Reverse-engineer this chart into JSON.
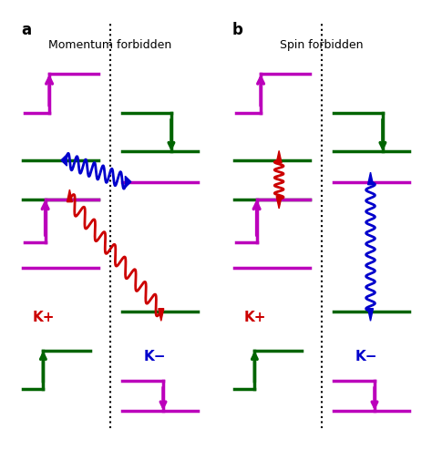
{
  "fig_width": 4.74,
  "fig_height": 4.94,
  "dpi": 100,
  "panel_a_title": "Momentum forbidden",
  "panel_b_title": "Spin forbidden",
  "label_a": "a",
  "label_b": "b",
  "purple": "#BB00BB",
  "green": "#006400",
  "red": "#CC0000",
  "blue": "#0000CC",
  "bg": "#FFFFFF",
  "border": "#000000"
}
